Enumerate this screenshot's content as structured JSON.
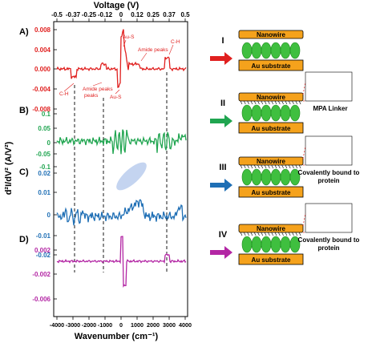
{
  "top_axis": {
    "label": "Voltage (V)",
    "ticks": [
      "-0.5",
      "-0.37",
      "-0.25",
      "-0.12",
      "0",
      "0.12",
      "0.25",
      "0.37",
      "0.5"
    ]
  },
  "bottom_axis": {
    "label": "Wavenumber (cm⁻¹)",
    "ticks": [
      "-4000",
      "-3000",
      "-2000",
      "-1000",
      "0",
      "1000",
      "2000",
      "3000",
      "4000"
    ]
  },
  "y_axis_label": "d²I/dV² (A/V²)",
  "colors": {
    "A": "#e0201f",
    "B": "#20a550",
    "C": "#1f6fb5",
    "D": "#b326a4",
    "nanowire": "#f5a21c",
    "substrate": "#f5a21c",
    "protein": "#3fbf3f"
  },
  "chart_data": [
    {
      "type": "line",
      "panel": "A)",
      "color": "#e0201f",
      "ylim": [
        -0.008,
        0.008
      ],
      "y_ticks": [
        "0.008",
        "0.004",
        "0.000",
        "-0.004",
        "-0.008"
      ],
      "annotations": [
        "Au-S",
        "Amide peaks",
        "C-H",
        "C-H",
        "Amide peaks",
        "Au-S"
      ]
    },
    {
      "type": "line",
      "panel": "B)",
      "color": "#20a550",
      "ylim": [
        -0.15,
        0.15
      ],
      "y_ticks": [
        "0.1",
        "0.05",
        "0",
        "-0.05",
        "-0.1"
      ]
    },
    {
      "type": "line",
      "panel": "C)",
      "color": "#1f6fb5",
      "ylim": [
        -0.02,
        0.025
      ],
      "y_ticks": [
        "0.02",
        "0.01",
        "0",
        "-0.01",
        "-0.02"
      ]
    },
    {
      "type": "line",
      "panel": "D)",
      "color": "#b326a4",
      "ylim": [
        -0.006,
        0.003
      ],
      "y_ticks": [
        "0.002",
        "-0.002",
        "-0.006"
      ]
    }
  ],
  "schematics": [
    {
      "roman": "I",
      "nanowire": "Nanowire",
      "substrate": "Au substrate",
      "arrow_color": "#e0201f"
    },
    {
      "roman": "II",
      "nanowire": "Nanowire",
      "substrate": "Au substrate",
      "arrow_color": "#20a550",
      "note": "MPA Linker"
    },
    {
      "roman": "III",
      "nanowire": "Nanowire",
      "substrate": "Au substrate",
      "arrow_color": "#1f6fb5",
      "note": "Covalently bound to protein"
    },
    {
      "roman": "IV",
      "nanowire": "Nanowire",
      "substrate": "Au substrate",
      "arrow_color": "#b326a4",
      "note": "Covalently bound to protein"
    }
  ]
}
